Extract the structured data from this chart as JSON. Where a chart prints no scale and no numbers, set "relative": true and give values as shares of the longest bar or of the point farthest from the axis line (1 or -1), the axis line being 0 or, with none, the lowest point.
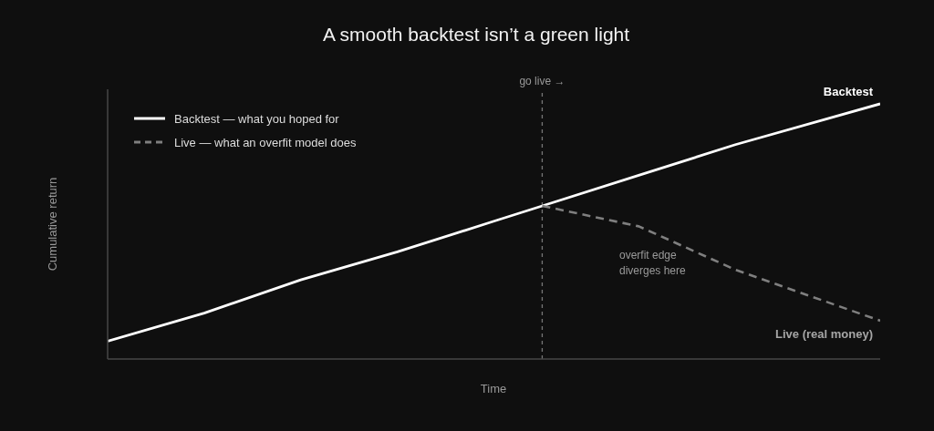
{
  "chart_data": {
    "type": "line",
    "title": "A smooth backtest isn’t a green light",
    "xlabel": "Time",
    "ylabel": "Cumulative return",
    "relative": true,
    "legend": "top left",
    "categories": [
      null,
      null,
      null,
      null,
      null,
      null,
      null,
      null,
      null,
      null,
      null,
      null,
      null,
      null,
      null,
      null,
      null
    ],
    "series": [
      {
        "name": "Backtest — what you hoped for",
        "color": "#ffffff",
        "line_style": "solid",
        "values": [
          0.07,
          null,
          0.18,
          null,
          0.31,
          null,
          0.42,
          null,
          0.54,
          0.6,
          null,
          0.72,
          null,
          0.84,
          null,
          null,
          1
        ]
      },
      {
        "name": "Live — what an overfit model does",
        "color": "#7f7f7f",
        "line_style": "dashed",
        "values": [
          null,
          null,
          null,
          null,
          null,
          null,
          null,
          null,
          null,
          0.6,
          null,
          0.52,
          null,
          0.35,
          null,
          null,
          0.15
        ]
      }
    ],
    "annotations": [
      "go live →",
      "Backtest",
      "overfit edge\ndiverges here",
      "Live (real money)"
    ]
  }
}
